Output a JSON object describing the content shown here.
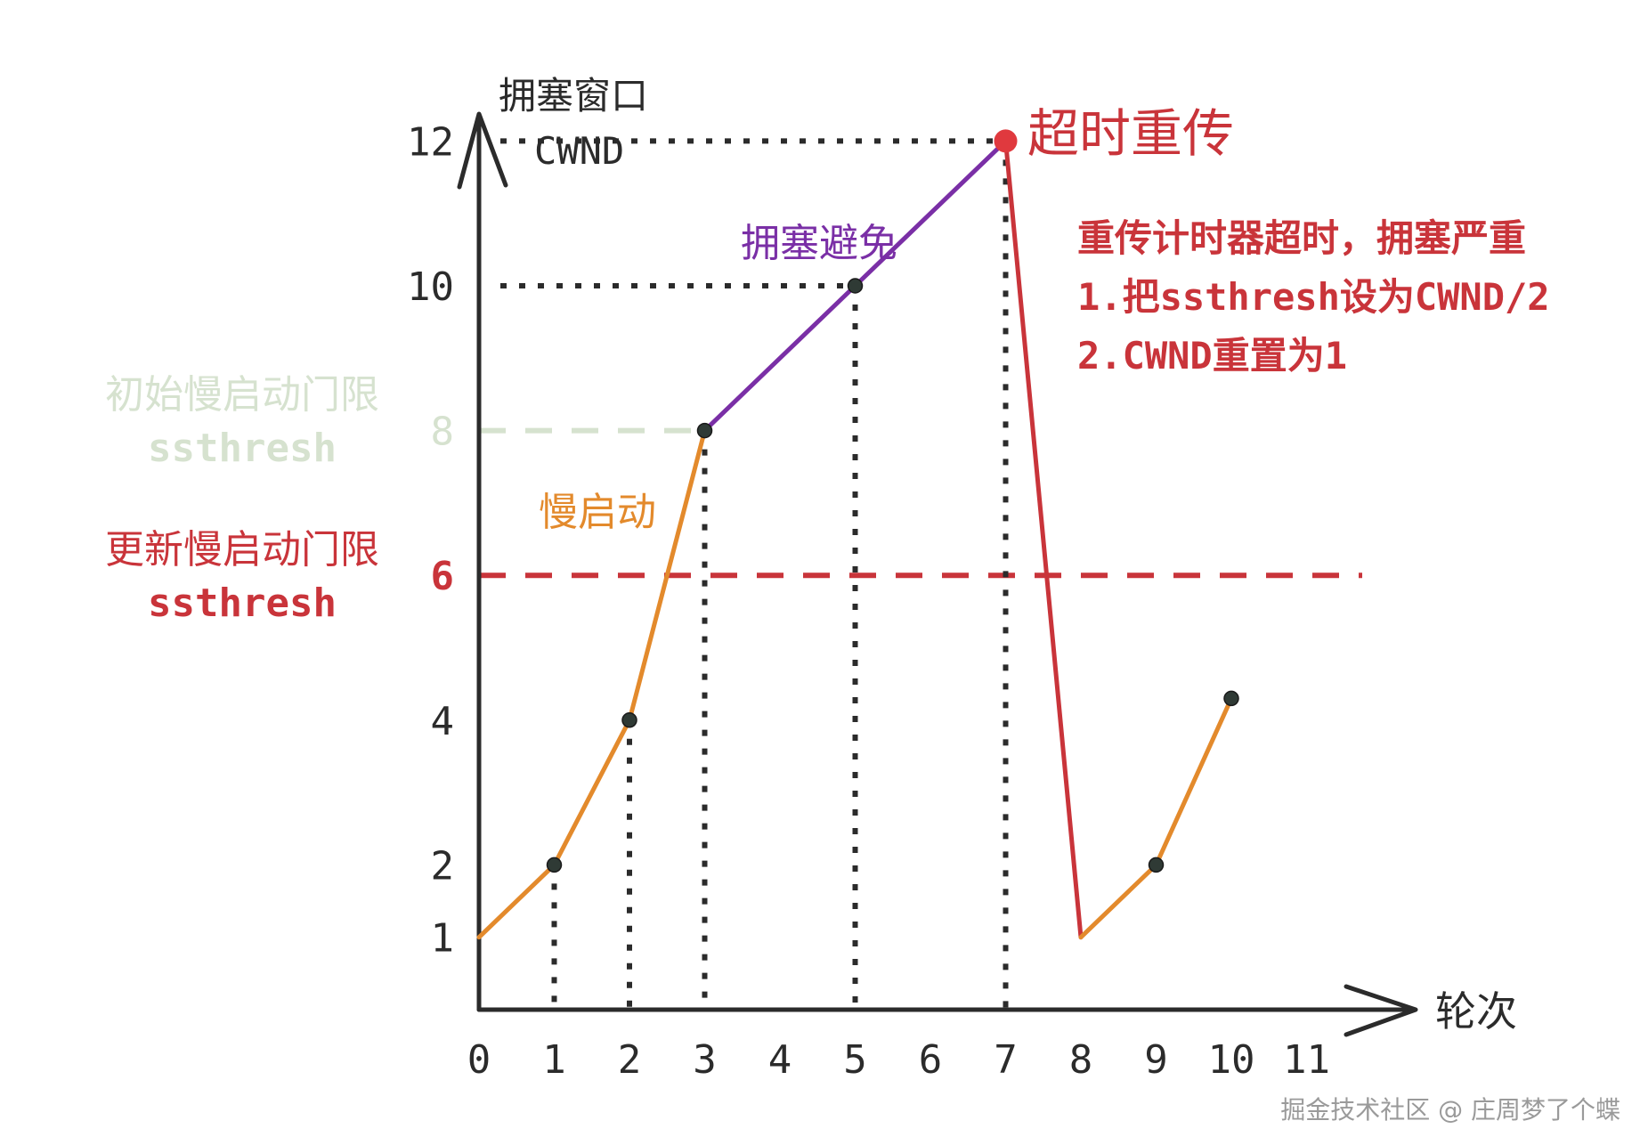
{
  "chart_data": {
    "type": "line",
    "title": "",
    "ylabel": [
      "拥塞窗口",
      "CWND"
    ],
    "xlabel": "轮次",
    "xticks": [
      0,
      1,
      2,
      3,
      4,
      5,
      6,
      7,
      8,
      9,
      10,
      11
    ],
    "yticks": [
      1,
      2,
      4,
      6,
      8,
      10,
      12
    ],
    "xlim": [
      0,
      11.5
    ],
    "ylim": [
      0,
      13
    ],
    "series": [
      {
        "name": "慢启动",
        "color": "#e38a2c",
        "x": [
          0,
          1,
          2,
          3
        ],
        "y": [
          1,
          2,
          4,
          8
        ]
      },
      {
        "name": "拥塞避免",
        "color": "#7a2fa6",
        "x": [
          3,
          5,
          7
        ],
        "y": [
          8,
          10,
          12
        ]
      },
      {
        "name": "",
        "color": "#c9343a",
        "x": [
          7,
          8
        ],
        "y": [
          12,
          1
        ]
      },
      {
        "name": "",
        "color": "#e38a2c",
        "x": [
          8,
          9,
          10
        ],
        "y": [
          1,
          2,
          4.3
        ]
      }
    ],
    "markers": [
      {
        "x": 1,
        "y": 2
      },
      {
        "x": 2,
        "y": 4
      },
      {
        "x": 3,
        "y": 8
      },
      {
        "x": 5,
        "y": 10
      },
      {
        "x": 9,
        "y": 2
      },
      {
        "x": 10,
        "y": 4.3
      }
    ],
    "timeout_marker": {
      "x": 7,
      "y": 12,
      "color": "#e0393e"
    },
    "guides": {
      "horizontal_dotted": [
        12,
        10
      ],
      "vertical_dotted": [
        1,
        2,
        3,
        5,
        7
      ]
    },
    "thresholds": [
      {
        "y": 8,
        "color": "#d6e2cf",
        "label": [
          "初始慢启动门限",
          "ssthresh"
        ]
      },
      {
        "y": 6,
        "color": "#c9343a",
        "label": [
          "更新慢启动门限",
          "ssthresh"
        ]
      }
    ],
    "annotations": {
      "slow_start": "慢启动",
      "congestion_avoidance": "拥塞避免",
      "timeout_title": "超时重传",
      "timeout_notes": [
        "重传计时器超时，拥塞严重",
        "1.把ssthresh设为CWND/2",
        "2.CWND重置为1"
      ]
    },
    "grid": false,
    "legend": "none"
  },
  "watermark": "掘金技术社区 @ 庄周梦了个蝶",
  "colors": {
    "axis": "#2b2b2b",
    "text_dark": "#2b2b2b",
    "red": "#c9343a",
    "orange": "#e38a2c",
    "purple": "#7a2fa6",
    "pale_green": "#d6e2cf",
    "watermark": "#9a9a9a"
  }
}
